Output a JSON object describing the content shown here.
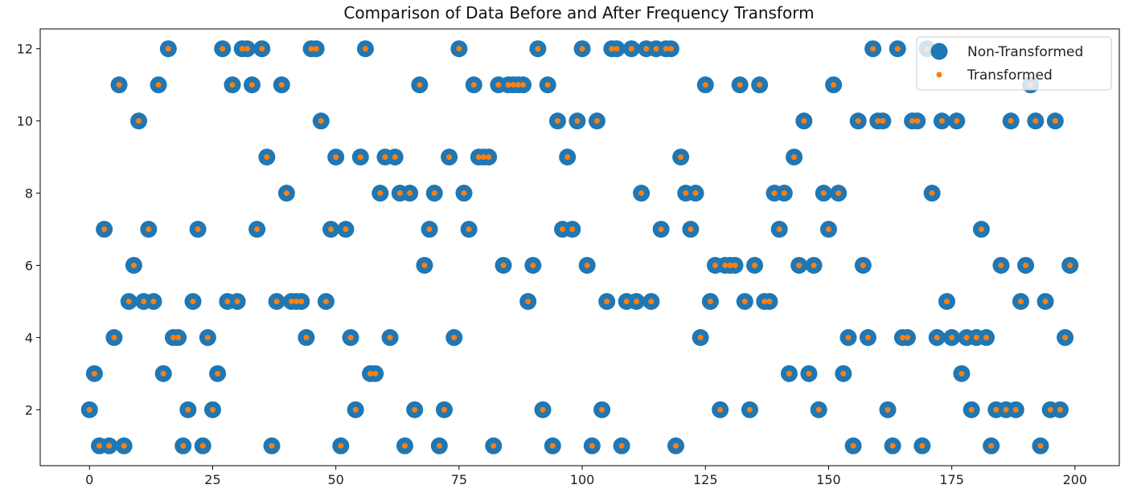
{
  "chart_data": {
    "type": "scatter",
    "title": "Comparison of Data Before and After Frequency Transform",
    "xlabel": "",
    "ylabel": "",
    "xlim": [
      -10,
      209
    ],
    "ylim": [
      0.45,
      12.55
    ],
    "xticks": [
      0,
      25,
      50,
      75,
      100,
      125,
      150,
      175,
      200
    ],
    "yticks": [
      2,
      4,
      6,
      8,
      10,
      12
    ],
    "grid": false,
    "legend_position": "top-right",
    "x": "indices 0..199",
    "series": [
      {
        "name": "Non-Transformed",
        "color": "#1f77b4",
        "marker": "large-circle",
        "values": [
          2,
          3,
          1,
          7,
          1,
          4,
          11,
          1,
          5,
          6,
          10,
          5,
          7,
          5,
          11,
          3,
          12,
          4,
          4,
          1,
          2,
          5,
          7,
          1,
          4,
          2,
          3,
          12,
          5,
          11,
          5,
          12,
          12,
          11,
          7,
          12,
          9,
          1,
          5,
          11,
          8,
          5,
          5,
          5,
          4,
          12,
          12,
          10,
          5,
          7,
          9,
          1,
          7,
          4,
          2,
          9,
          12,
          3,
          3,
          8,
          9,
          4,
          9,
          8,
          1,
          8,
          2,
          11,
          6,
          7,
          8,
          1,
          2,
          9,
          4,
          12,
          8,
          7,
          11,
          9,
          9,
          9,
          1,
          11,
          6,
          11,
          11,
          11,
          11,
          5,
          6,
          12,
          2,
          11,
          1,
          10,
          7,
          9,
          7,
          10,
          12,
          6,
          1,
          10,
          2,
          5,
          12,
          12,
          1,
          5,
          12,
          5,
          8,
          12,
          5,
          12,
          7,
          12,
          12,
          1,
          9,
          8,
          7,
          8,
          4,
          11,
          5,
          6,
          2,
          6,
          6,
          6,
          11,
          5,
          2,
          6,
          11,
          5,
          5,
          8,
          7,
          8,
          3,
          9,
          6,
          10,
          3,
          6,
          2,
          8,
          7,
          11,
          8,
          3,
          4,
          1,
          10,
          6,
          4,
          12,
          10,
          10,
          2,
          1,
          12,
          4,
          4,
          10,
          10,
          1,
          12,
          8,
          4,
          10,
          5,
          4,
          10,
          3,
          4,
          2,
          4,
          7,
          4,
          1,
          2,
          6,
          2,
          10,
          2,
          5,
          6,
          11,
          10,
          1,
          5,
          2,
          10,
          2,
          4,
          6
        ]
      },
      {
        "name": "Transformed",
        "color": "#ff7f0e",
        "marker": "small-circle",
        "values": [
          2,
          3,
          1,
          7,
          1,
          4,
          11,
          1,
          5,
          6,
          10,
          5,
          7,
          5,
          11,
          3,
          12,
          4,
          4,
          1,
          2,
          5,
          7,
          1,
          4,
          2,
          3,
          12,
          5,
          11,
          5,
          12,
          12,
          11,
          7,
          12,
          9,
          1,
          5,
          11,
          8,
          5,
          5,
          5,
          4,
          12,
          12,
          10,
          5,
          7,
          9,
          1,
          7,
          4,
          2,
          9,
          12,
          3,
          3,
          8,
          9,
          4,
          9,
          8,
          1,
          8,
          2,
          11,
          6,
          7,
          8,
          1,
          2,
          9,
          4,
          12,
          8,
          7,
          11,
          9,
          9,
          9,
          1,
          11,
          6,
          11,
          11,
          11,
          11,
          5,
          6,
          12,
          2,
          11,
          1,
          10,
          7,
          9,
          7,
          10,
          12,
          6,
          1,
          10,
          2,
          5,
          12,
          12,
          1,
          5,
          12,
          5,
          8,
          12,
          5,
          12,
          7,
          12,
          12,
          1,
          9,
          8,
          7,
          8,
          4,
          11,
          5,
          6,
          2,
          6,
          6,
          6,
          11,
          5,
          2,
          6,
          11,
          5,
          5,
          8,
          7,
          8,
          3,
          9,
          6,
          10,
          3,
          6,
          2,
          8,
          7,
          11,
          8,
          3,
          4,
          1,
          10,
          6,
          4,
          12,
          10,
          10,
          2,
          1,
          12,
          4,
          4,
          10,
          10,
          1,
          12,
          8,
          4,
          10,
          5,
          4,
          10,
          3,
          4,
          2,
          4,
          7,
          4,
          1,
          2,
          6,
          2,
          10,
          2,
          5,
          6,
          11,
          10,
          1,
          5,
          2,
          10,
          2,
          4,
          6
        ]
      }
    ]
  }
}
